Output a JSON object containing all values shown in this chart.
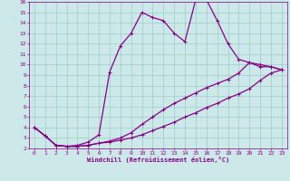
{
  "xlabel": "Windchill (Refroidissement éolien,°C)",
  "bg_color": "#cce8e8",
  "grid_color": "#99cccc",
  "line_color": "#880088",
  "xlim": [
    -0.5,
    23.5
  ],
  "ylim": [
    2,
    16
  ],
  "xticks": [
    0,
    1,
    2,
    3,
    4,
    5,
    6,
    7,
    8,
    9,
    10,
    11,
    12,
    13,
    14,
    15,
    16,
    17,
    18,
    19,
    20,
    21,
    22,
    23
  ],
  "yticks": [
    2,
    3,
    4,
    5,
    6,
    7,
    8,
    9,
    10,
    11,
    12,
    13,
    14,
    15,
    16
  ],
  "line1_x": [
    0,
    1,
    2,
    3,
    4,
    5,
    6,
    7,
    8,
    9,
    10,
    11,
    12,
    13,
    14,
    15,
    16,
    17,
    18,
    19,
    20,
    21,
    22,
    23
  ],
  "line1_y": [
    4.0,
    3.2,
    2.3,
    2.2,
    2.2,
    2.3,
    2.5,
    2.6,
    2.8,
    3.0,
    3.3,
    3.7,
    4.1,
    4.5,
    5.0,
    5.4,
    5.9,
    6.3,
    6.8,
    7.2,
    7.7,
    8.5,
    9.2,
    9.5
  ],
  "line2_x": [
    0,
    1,
    2,
    3,
    4,
    5,
    6,
    7,
    8,
    9,
    10,
    11,
    12,
    13,
    14,
    15,
    16,
    17,
    18,
    19,
    20,
    21,
    22,
    23
  ],
  "line2_y": [
    4.0,
    3.2,
    2.3,
    2.2,
    2.2,
    2.3,
    2.5,
    2.7,
    3.0,
    3.5,
    4.3,
    5.0,
    5.7,
    6.3,
    6.8,
    7.3,
    7.8,
    8.2,
    8.6,
    9.2,
    10.2,
    10.0,
    9.8,
    9.5
  ],
  "line3_x": [
    0,
    1,
    2,
    3,
    4,
    5,
    6,
    7,
    8,
    9,
    10,
    11,
    12,
    13,
    14,
    15,
    16,
    17,
    18,
    19,
    20,
    21,
    22,
    23
  ],
  "line3_y": [
    4.0,
    3.2,
    2.3,
    2.2,
    2.3,
    2.6,
    3.3,
    9.3,
    11.8,
    13.0,
    15.0,
    14.5,
    14.2,
    13.0,
    12.2,
    16.2,
    16.2,
    14.2,
    12.0,
    10.5,
    10.2,
    9.8,
    9.8,
    9.5
  ],
  "marker": "+",
  "markersize": 3,
  "linewidth": 0.9
}
